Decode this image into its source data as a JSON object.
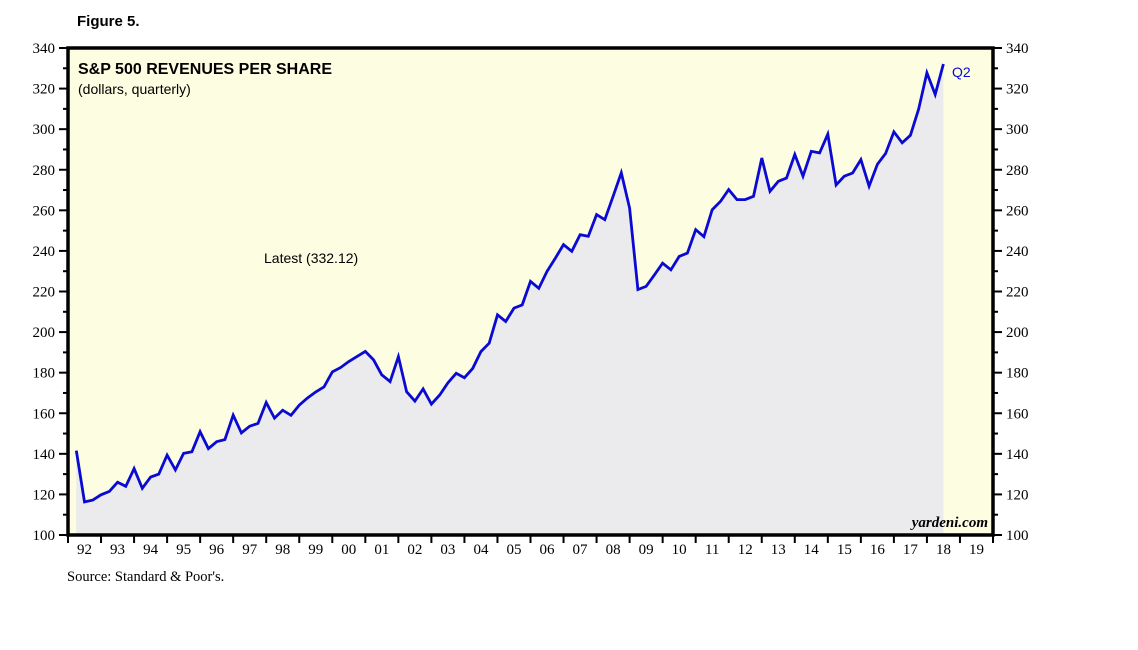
{
  "figure": {
    "label": "Figure 5."
  },
  "footer": {
    "source": "Source: Standard & Poor's."
  },
  "chart_data": {
    "type": "area",
    "title": "S&P 500 REVENUES PER SHARE",
    "subtitle": "(dollars, quarterly)",
    "annotation_latest": "Latest (332.12)",
    "latest_value": 332.12,
    "last_point_label": "Q2",
    "watermark": "yardeni.com",
    "frequency": "quarterly",
    "start_quarter": "1992-Q1",
    "end_quarter": "2018-Q2",
    "xlim_years": [
      1992,
      2020
    ],
    "ylim": [
      100,
      340
    ],
    "y_major_step": 20,
    "y_minor_step": 10,
    "grid": "off",
    "legend": "none",
    "x_tick_labels": [
      "92",
      "93",
      "94",
      "95",
      "96",
      "97",
      "98",
      "99",
      "00",
      "01",
      "02",
      "03",
      "04",
      "05",
      "06",
      "07",
      "08",
      "09",
      "10",
      "11",
      "12",
      "13",
      "14",
      "15",
      "16",
      "17",
      "18",
      "19"
    ],
    "y_tick_labels": [
      "100",
      "120",
      "140",
      "160",
      "180",
      "200",
      "220",
      "240",
      "260",
      "280",
      "300",
      "320",
      "340"
    ],
    "colors": {
      "line": "#0a0ad2",
      "area_fill": "#ebebee",
      "plot_background": "#fdfde1",
      "frame": "#000000",
      "q2_label": "#0a0ad2"
    },
    "values": [
      141.6,
      116.3,
      117.2,
      119.8,
      121.5,
      126.0,
      124.0,
      132.7,
      123.0,
      128.6,
      130.0,
      139.4,
      132.1,
      140.2,
      141.0,
      150.9,
      142.6,
      146.0,
      147.0,
      159.1,
      150.3,
      153.6,
      155.0,
      165.3,
      157.6,
      161.5,
      159.0,
      164.0,
      167.5,
      170.5,
      173.0,
      180.4,
      182.5,
      185.5,
      188.0,
      190.5,
      186.3,
      178.9,
      175.6,
      187.9,
      170.6,
      166.0,
      172.0,
      164.5,
      169.0,
      175.0,
      179.7,
      177.5,
      182.1,
      190.4,
      194.5,
      208.5,
      205.2,
      211.8,
      213.4,
      225.0,
      221.6,
      229.9,
      236.4,
      243.1,
      239.8,
      248.0,
      247.2,
      257.9,
      255.4,
      266.9,
      278.5,
      261.1,
      221.0,
      222.5,
      228.2,
      234.0,
      230.7,
      237.3,
      238.9,
      250.5,
      247.0,
      260.3,
      264.4,
      270.2,
      265.3,
      265.3,
      266.9,
      285.8,
      269.4,
      274.3,
      275.9,
      287.5,
      276.8,
      289.1,
      288.3,
      297.5,
      272.5,
      276.8,
      278.4,
      285.0,
      271.9,
      282.7,
      288.0,
      298.7,
      293.3,
      297.0,
      310.0,
      327.8,
      317.1,
      332.12
    ]
  }
}
